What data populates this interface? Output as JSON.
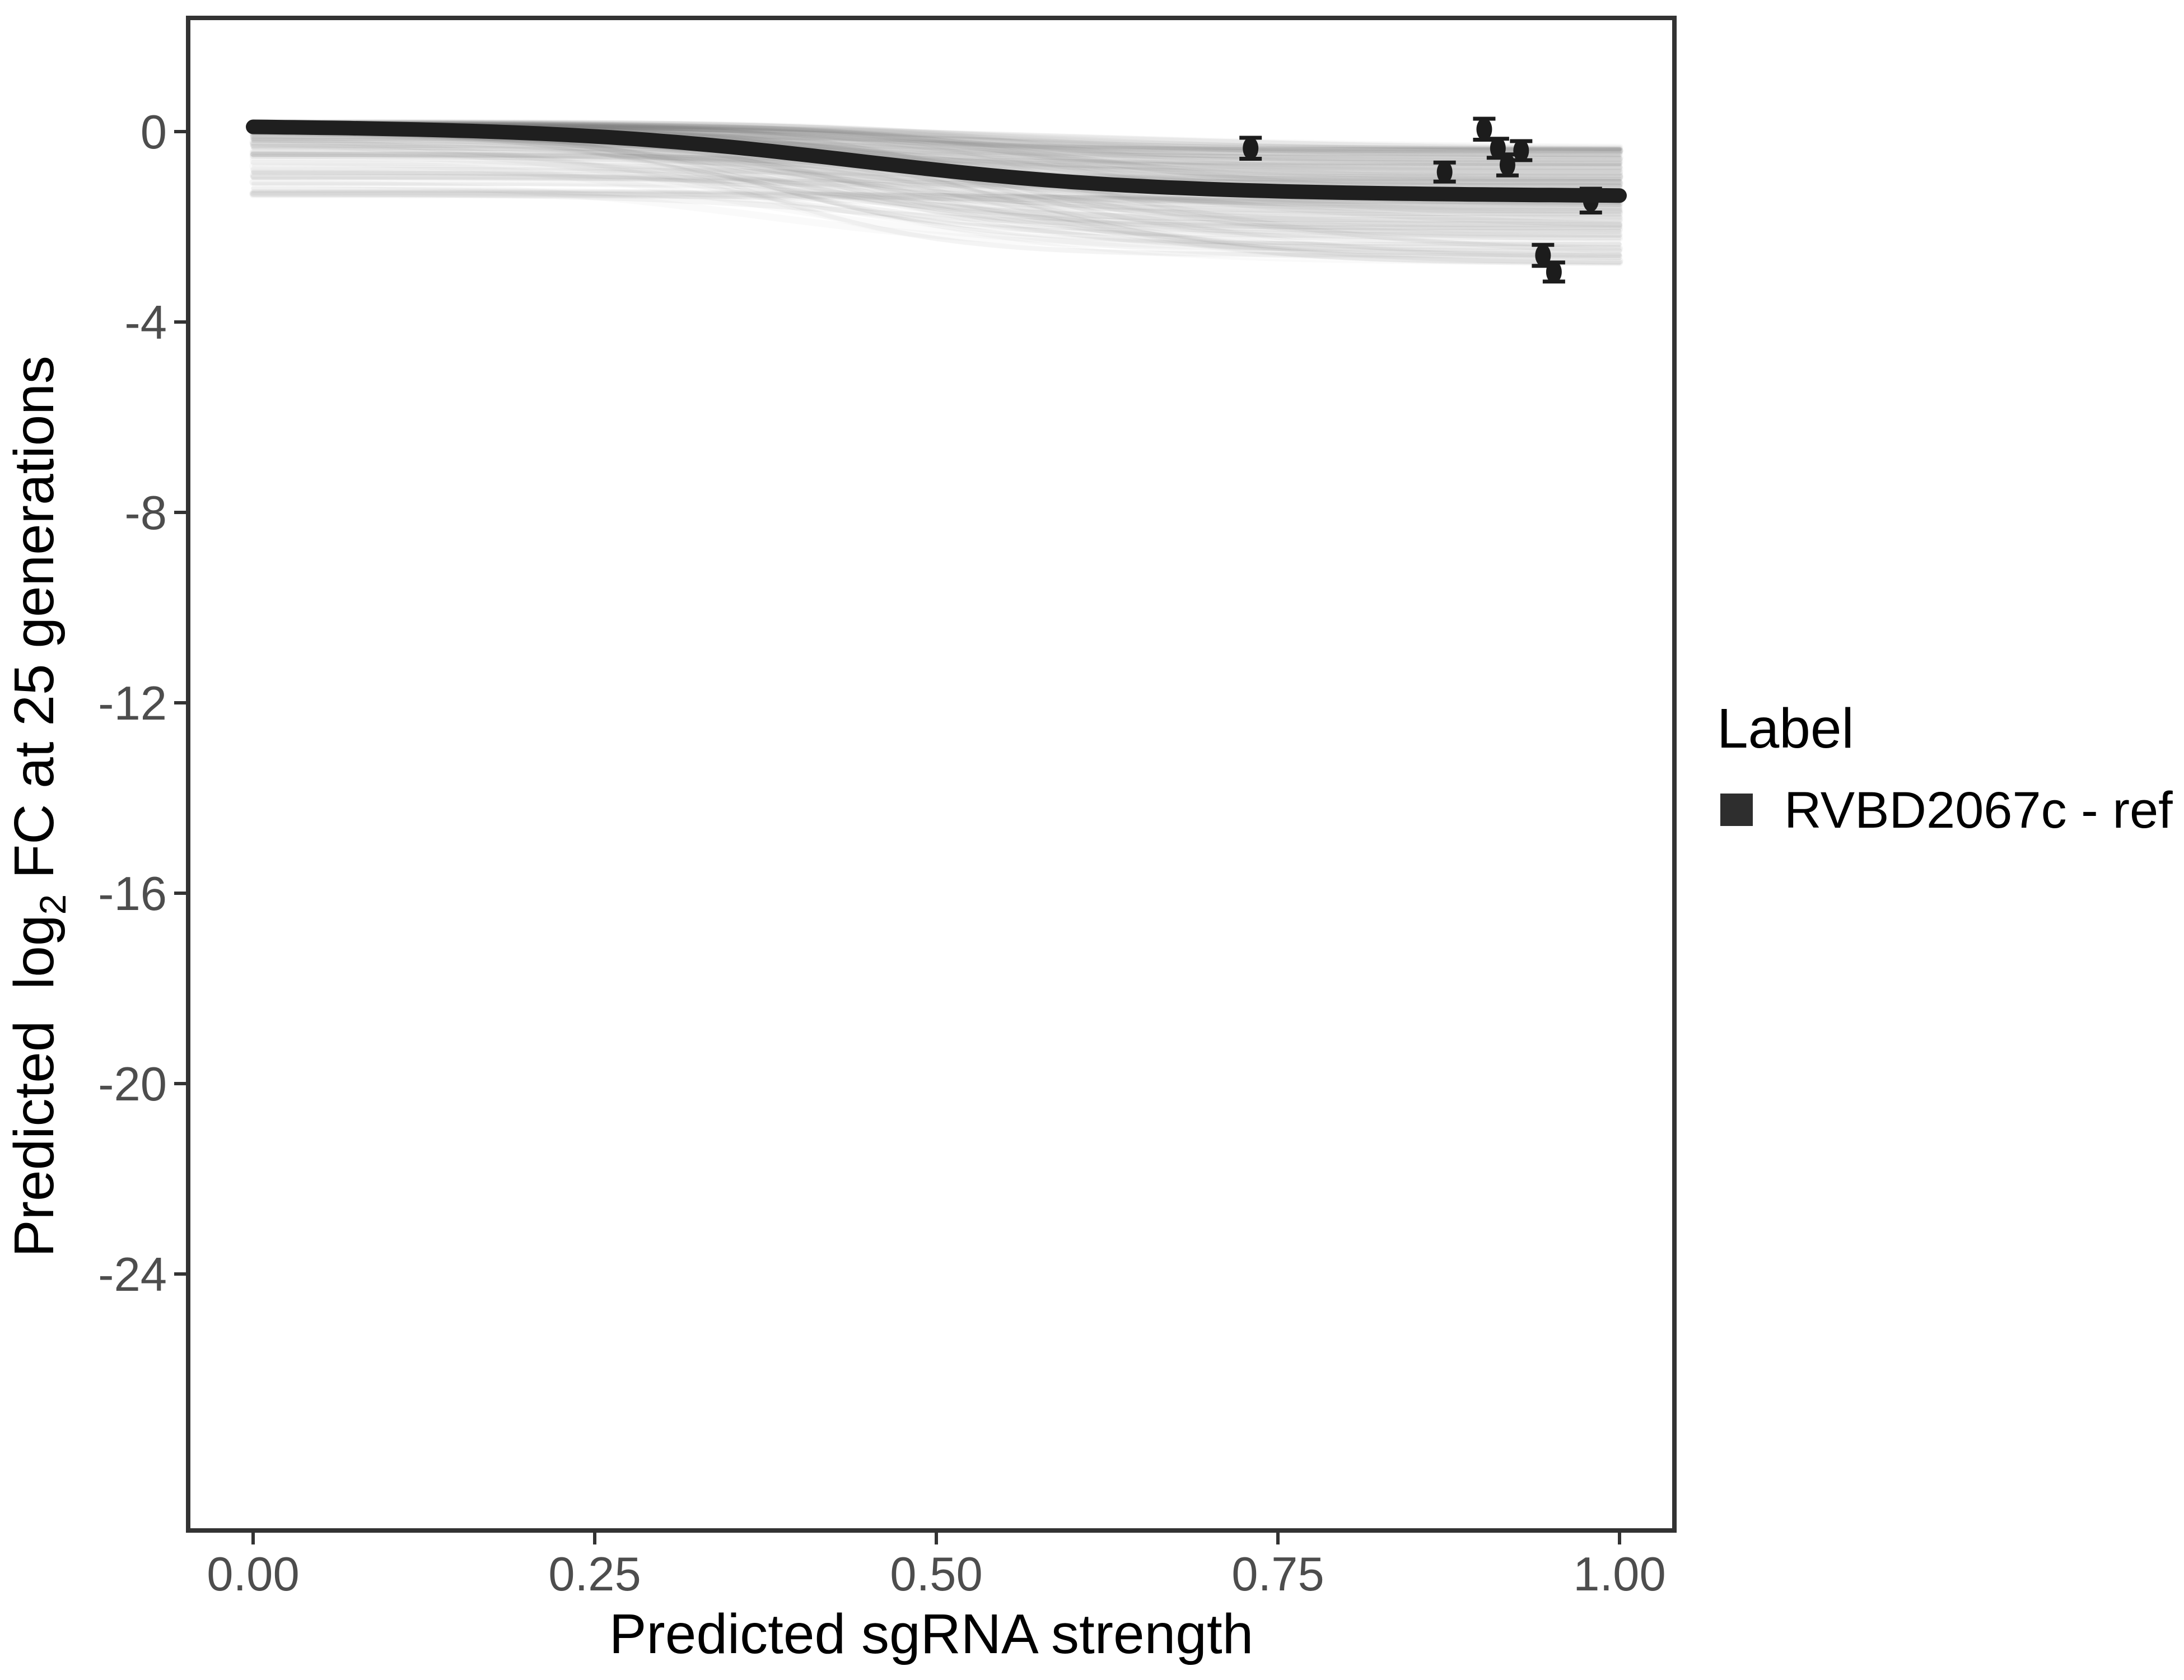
{
  "chart_data": {
    "type": "line",
    "title": "",
    "xlabel": "Predicted sgRNA strength",
    "ylabel": "Predicted log2 FC at 25 generations",
    "ylabel_parts": [
      "Predicted  log",
      "2",
      " FC at 25 generations"
    ],
    "x_ticks": [
      {
        "label": "0.00",
        "value": 0.0
      },
      {
        "label": "0.25",
        "value": 0.25
      },
      {
        "label": "0.50",
        "value": 0.5
      },
      {
        "label": "0.75",
        "value": 0.75
      },
      {
        "label": "1.00",
        "value": 1.0
      }
    ],
    "y_ticks": [
      {
        "label": "0",
        "value": 0
      },
      {
        "label": "-4",
        "value": -4
      },
      {
        "label": "-8",
        "value": -8
      },
      {
        "label": "-12",
        "value": -12
      },
      {
        "label": "-16",
        "value": -16
      },
      {
        "label": "-20",
        "value": -20
      },
      {
        "label": "-24",
        "value": -24
      }
    ],
    "xlim": [
      -0.0475,
      1.0405
    ],
    "ylim": [
      -29.4,
      2.39
    ],
    "grid": false,
    "legend_position": "right",
    "series": [
      {
        "name": "RVBD2067c - ref",
        "type": "sigmoid-line",
        "color": "#1f1f1f",
        "stroke_width": 26,
        "curve_params": {
          "y_start": 0.12,
          "drop": 1.35,
          "midpoint_x": 0.44,
          "steepness": 9.5,
          "linear_drift": -0.12
        },
        "sampled": {
          "x": [
            0,
            0.1,
            0.2,
            0.3,
            0.4,
            0.5,
            0.6,
            0.7,
            0.8,
            0.9,
            1.0
          ],
          "y": [
            0.1,
            0.06,
            -0.03,
            -0.2,
            -0.48,
            -0.8,
            -1.06,
            -1.21,
            -1.28,
            -1.32,
            -1.34
          ]
        }
      },
      {
        "name": "posterior-ensemble",
        "type": "sigmoid-ensemble",
        "color": "#777777",
        "count": 160,
        "seed": 42,
        "y_start_range": [
          -1.37,
          0.18
        ],
        "y_end_range": [
          -2.8,
          -0.35
        ],
        "midpoint_range": [
          0.34,
          0.62
        ],
        "steepness_range": [
          6,
          15
        ],
        "opacity_range": [
          0.028,
          0.075
        ]
      },
      {
        "name": "observed-points",
        "type": "pointrange",
        "color": "#1c1c1c",
        "points": [
          {
            "x": 0.73,
            "y": -0.35,
            "err": 0.22
          },
          {
            "x": 0.872,
            "y": -0.85,
            "err": 0.2
          },
          {
            "x": 0.901,
            "y": 0.05,
            "err": 0.22
          },
          {
            "x": 0.911,
            "y": -0.35,
            "err": 0.2
          },
          {
            "x": 0.918,
            "y": -0.7,
            "err": 0.22
          },
          {
            "x": 0.928,
            "y": -0.4,
            "err": 0.2
          },
          {
            "x": 0.944,
            "y": -2.6,
            "err": 0.22
          },
          {
            "x": 0.952,
            "y": -2.95,
            "err": 0.2
          },
          {
            "x": 0.979,
            "y": -1.45,
            "err": 0.25
          }
        ]
      }
    ]
  },
  "legend": {
    "title": "Label",
    "items": [
      {
        "label": "RVBD2067c - ref",
        "marker": "square",
        "marker_color": "#2e2e2e"
      }
    ]
  },
  "axis_style": {
    "tick_label_color": "#4d4d4d",
    "title_color": "#000000",
    "border_color": "#333333",
    "background": "#ffffff"
  }
}
